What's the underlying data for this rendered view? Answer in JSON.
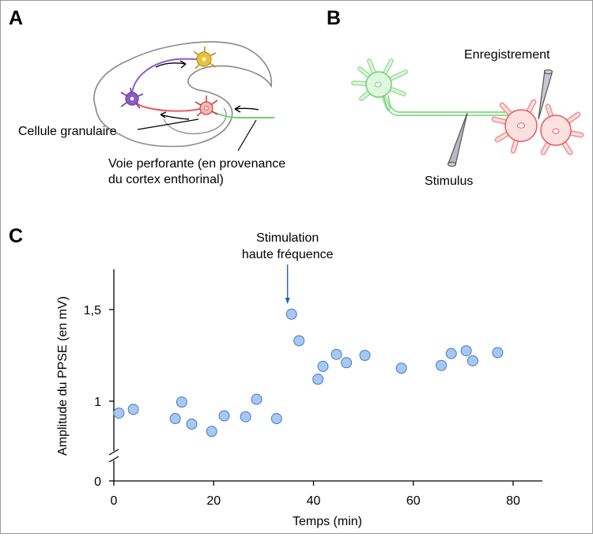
{
  "panels": {
    "a": {
      "letter": "A",
      "label_granule": "Cellule granulaire",
      "label_path_line1": "Voie perforante (en provenance",
      "label_path_line2": "du cortex enthorinal)"
    },
    "b": {
      "letter": "B",
      "label_recording": "Enregistrement",
      "label_stimulus": "Stimulus"
    },
    "c": {
      "letter": "C",
      "annotation_line1": "Stimulation",
      "annotation_line2": "haute fréquence"
    }
  },
  "colors": {
    "point_fill": "#a7c8f2",
    "point_stroke": "#4a78c0",
    "annotation": "#1c64c8",
    "neuron_green": "#6fd06f",
    "neuron_red": "#e85a5a",
    "neuron_purple": "#8a5cc8",
    "neuron_yellow": "#e8c33a"
  },
  "chart_data": {
    "type": "scatter",
    "xlabel": "Temps (min)",
    "ylabel": "Amplitude du PPSE (en mV)",
    "xlim": [
      0,
      85
    ],
    "x_ticks": [
      0,
      20,
      40,
      60,
      80
    ],
    "x_tick_labels": [
      "0",
      "20",
      "40",
      "60",
      "80"
    ],
    "y_ticks": [
      0,
      1,
      1.5
    ],
    "y_tick_labels": [
      "0",
      "1",
      "1,5"
    ],
    "y_axis_break": true,
    "annotation": {
      "text": "Stimulation haute fréquence",
      "x": 34.8
    },
    "points": [
      {
        "x": 1.0,
        "y": 0.935
      },
      {
        "x": 3.9,
        "y": 0.955
      },
      {
        "x": 12.3,
        "y": 0.905
      },
      {
        "x": 13.6,
        "y": 0.995
      },
      {
        "x": 15.6,
        "y": 0.875
      },
      {
        "x": 19.6,
        "y": 0.835
      },
      {
        "x": 22.1,
        "y": 0.92
      },
      {
        "x": 26.4,
        "y": 0.915
      },
      {
        "x": 28.6,
        "y": 1.01
      },
      {
        "x": 32.6,
        "y": 0.905
      },
      {
        "x": 35.6,
        "y": 1.475
      },
      {
        "x": 37.1,
        "y": 1.33
      },
      {
        "x": 40.9,
        "y": 1.12
      },
      {
        "x": 41.9,
        "y": 1.19
      },
      {
        "x": 44.6,
        "y": 1.255
      },
      {
        "x": 46.6,
        "y": 1.21
      },
      {
        "x": 50.3,
        "y": 1.25
      },
      {
        "x": 57.6,
        "y": 1.18
      },
      {
        "x": 65.6,
        "y": 1.195
      },
      {
        "x": 67.6,
        "y": 1.26
      },
      {
        "x": 70.6,
        "y": 1.275
      },
      {
        "x": 71.9,
        "y": 1.22
      },
      {
        "x": 76.9,
        "y": 1.265
      }
    ]
  }
}
